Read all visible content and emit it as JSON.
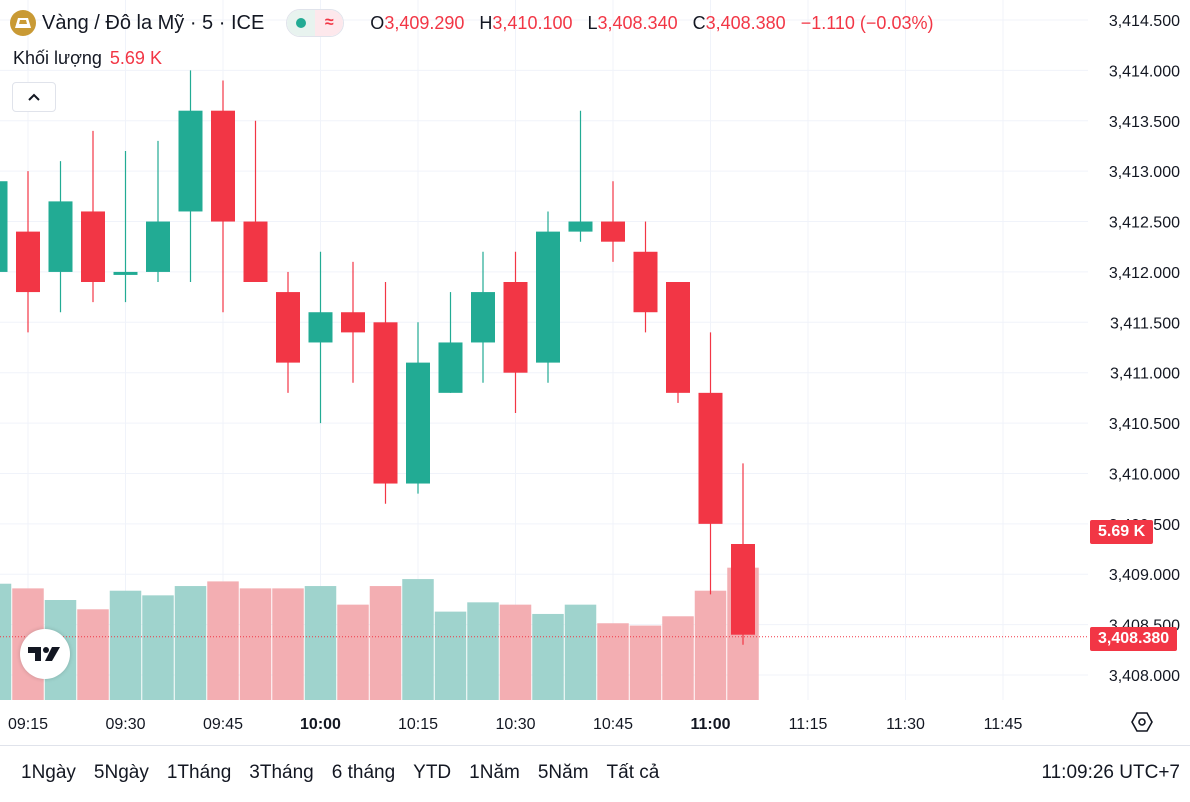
{
  "header": {
    "symbol": "Vàng / Đô la Mỹ · 5 · ICE",
    "ohlc": [
      {
        "k": "O",
        "v": "3,409.290"
      },
      {
        "k": "H",
        "v": "3,410.100"
      },
      {
        "k": "L",
        "v": "3,408.340"
      },
      {
        "k": "C",
        "v": "3,408.380"
      }
    ],
    "change": "−1.110 (−0.03%)",
    "volume_label": "Khối lượng",
    "volume_value": "5.69 K"
  },
  "icons": {
    "symbol": "gold-bar-icon",
    "live": "live-dot-icon",
    "wave": "approx-icon",
    "collapse": "chevron-up-icon",
    "logo": "tradingview-logo-icon",
    "settings": "hexagon-gear-icon"
  },
  "colors": {
    "up": "#22ab94",
    "down": "#f23645",
    "up_vol": "#9fd3cd",
    "down_vol": "#f3aeb2",
    "last_price": "#f23645",
    "grid": "#f0f3fa"
  },
  "tags": {
    "volume": "5.69 K",
    "last_price": "3,408.380"
  },
  "ranges": [
    "1Ngày",
    "5Ngày",
    "1Tháng",
    "3Tháng",
    "6 tháng",
    "YTD",
    "1Năm",
    "5Năm",
    "Tất cả"
  ],
  "clock": "11:09:26 UTC+7",
  "chart_data": {
    "type": "candlestick",
    "interval_minutes": 5,
    "price_axis": {
      "range": [
        3407.8,
        3414.6
      ],
      "ticks": [
        3408.0,
        3408.5,
        3409.0,
        3409.5,
        3410.0,
        3410.5,
        3411.0,
        3411.5,
        3412.0,
        3412.5,
        3413.0,
        3413.5,
        3414.0,
        3414.5
      ],
      "tick_labels": [
        "3,408.000",
        "3,408.500",
        "3,409.000",
        "3,409.500",
        "3,410.000",
        "3,410.500",
        "3,411.000",
        "3,411.500",
        "3,412.000",
        "3,412.500",
        "3,413.000",
        "3,413.500",
        "3,414.000",
        "3,414.500"
      ]
    },
    "time_axis": {
      "ticks": [
        "09:15",
        "09:30",
        "09:45",
        "10:00",
        "10:15",
        "10:30",
        "10:45",
        "11:00",
        "11:15",
        "11:30",
        "11:45"
      ],
      "bold": [
        "10:00",
        "11:00"
      ]
    },
    "last_price": 3408.38,
    "candles": [
      {
        "t": "09:10",
        "o": 3412.0,
        "h": 3413.1,
        "l": 3412.0,
        "c": 3412.9
      },
      {
        "t": "09:15",
        "o": 3412.4,
        "h": 3413.0,
        "l": 3411.4,
        "c": 3411.8
      },
      {
        "t": "09:20",
        "o": 3412.0,
        "h": 3413.1,
        "l": 3411.6,
        "c": 3412.7
      },
      {
        "t": "09:25",
        "o": 3412.6,
        "h": 3413.4,
        "l": 3411.7,
        "c": 3411.9
      },
      {
        "t": "09:30",
        "o": 3412.0,
        "h": 3413.2,
        "l": 3411.7,
        "c": 3412.0
      },
      {
        "t": "09:35",
        "o": 3412.0,
        "h": 3413.3,
        "l": 3411.9,
        "c": 3412.5
      },
      {
        "t": "09:40",
        "o": 3412.6,
        "h": 3414.0,
        "l": 3411.9,
        "c": 3413.6
      },
      {
        "t": "09:45",
        "o": 3413.6,
        "h": 3413.9,
        "l": 3411.6,
        "c": 3412.5
      },
      {
        "t": "09:50",
        "o": 3412.5,
        "h": 3413.5,
        "l": 3411.9,
        "c": 3411.9
      },
      {
        "t": "09:55",
        "o": 3411.8,
        "h": 3412.0,
        "l": 3410.8,
        "c": 3411.1
      },
      {
        "t": "10:00",
        "o": 3411.3,
        "h": 3412.2,
        "l": 3410.5,
        "c": 3411.6
      },
      {
        "t": "10:05",
        "o": 3411.6,
        "h": 3412.1,
        "l": 3410.9,
        "c": 3411.4
      },
      {
        "t": "10:10",
        "o": 3411.5,
        "h": 3411.9,
        "l": 3409.7,
        "c": 3409.9
      },
      {
        "t": "10:15",
        "o": 3409.9,
        "h": 3411.5,
        "l": 3409.8,
        "c": 3411.1
      },
      {
        "t": "10:20",
        "o": 3410.8,
        "h": 3411.8,
        "l": 3410.8,
        "c": 3411.3
      },
      {
        "t": "10:25",
        "o": 3411.3,
        "h": 3412.2,
        "l": 3410.9,
        "c": 3411.8
      },
      {
        "t": "10:30",
        "o": 3411.9,
        "h": 3412.2,
        "l": 3410.6,
        "c": 3411.0
      },
      {
        "t": "10:35",
        "o": 3411.1,
        "h": 3412.6,
        "l": 3410.9,
        "c": 3412.4
      },
      {
        "t": "10:40",
        "o": 3412.4,
        "h": 3413.6,
        "l": 3412.3,
        "c": 3412.5
      },
      {
        "t": "10:45",
        "o": 3412.5,
        "h": 3412.9,
        "l": 3412.1,
        "c": 3412.3
      },
      {
        "t": "10:50",
        "o": 3412.2,
        "h": 3412.5,
        "l": 3411.4,
        "c": 3411.6
      },
      {
        "t": "10:55",
        "o": 3411.9,
        "h": 3411.9,
        "l": 3410.7,
        "c": 3410.8
      },
      {
        "t": "11:00",
        "o": 3410.8,
        "h": 3411.4,
        "l": 3408.8,
        "c": 3409.5
      },
      {
        "t": "11:05",
        "o": 3409.3,
        "h": 3410.1,
        "l": 3408.3,
        "c": 3408.4
      }
    ],
    "volume": {
      "unit": "K",
      "values": [
        5.0,
        4.8,
        4.3,
        3.9,
        4.7,
        4.5,
        4.9,
        5.1,
        4.8,
        4.8,
        4.9,
        4.1,
        4.9,
        5.2,
        3.8,
        4.2,
        4.1,
        3.7,
        4.1,
        3.3,
        3.2,
        3.6,
        4.7,
        5.69
      ],
      "range": [
        0,
        8.6
      ]
    }
  }
}
